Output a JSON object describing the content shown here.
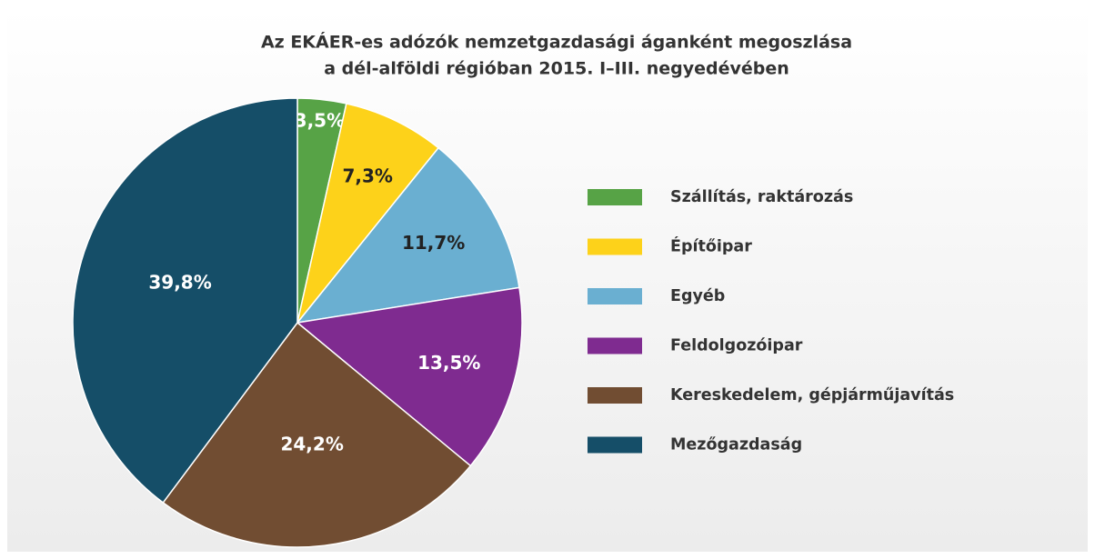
{
  "chart_data": {
    "type": "pie",
    "title": [
      "Az EKÁER-es adózók nemzetgazdasági áganként megoszlása",
      "a dél-alföldi régióban 2015. I–III. negyedévében"
    ],
    "categories": [
      "Szállítás, raktározás",
      "Építőipar",
      "Egyéb",
      "Feldolgozóipar",
      "Kereskedelem, gépjárműjavítás",
      "Mezőgazdaság"
    ],
    "values": [
      3.5,
      7.3,
      11.7,
      13.5,
      24.2,
      39.8
    ],
    "value_labels": [
      "3,5%",
      "7,3%",
      "11,7%",
      "13,5%",
      "24,2%",
      "39,8%"
    ],
    "colors": [
      "#57a346",
      "#fdd21a",
      "#6aafd1",
      "#7f2b90",
      "#714d32",
      "#154e68"
    ],
    "legend": "right"
  }
}
